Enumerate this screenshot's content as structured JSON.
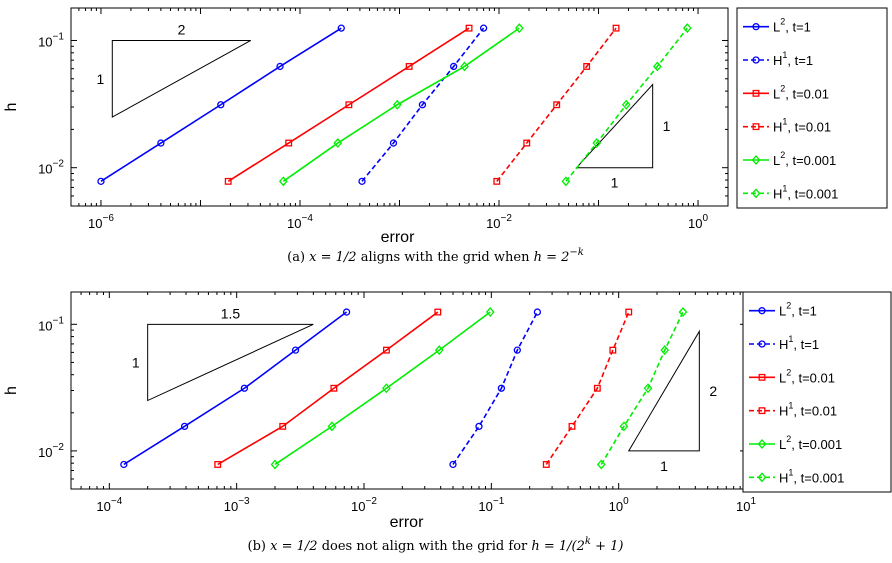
{
  "chart_data": [
    {
      "type": "line",
      "panel": "a",
      "caption_prefix": "(a)",
      "caption_math1": "x = 1/2",
      "caption_text": "aligns with the grid when",
      "caption_math2": "h = 2",
      "caption_sup": "−k",
      "xlabel": "error",
      "ylabel": "h",
      "xscale": "log",
      "yscale": "log",
      "xlim": [
        5e-07,
        2
      ],
      "ylim": [
        0.005,
        0.18
      ],
      "xticks": [
        {
          "v": 1e-06,
          "base": "10",
          "exp": "−6"
        },
        {
          "v": 0.0001,
          "base": "10",
          "exp": "−4"
        },
        {
          "v": 0.01,
          "base": "10",
          "exp": "−2"
        },
        {
          "v": 1,
          "base": "10",
          "exp": "0"
        }
      ],
      "yticks": [
        {
          "v": 0.01,
          "base": "10",
          "exp": "−2"
        },
        {
          "v": 0.1,
          "base": "10",
          "exp": "−1"
        }
      ],
      "legend_position": "right-outside",
      "series": [
        {
          "name_base": "L",
          "name_sup": "2",
          "name_rest": ", t=1",
          "color": "#0000ff",
          "dash": false,
          "marker": "circle",
          "x": [
            1e-06,
            4e-06,
            1.6e-05,
            6.3e-05,
            0.00026
          ],
          "y": [
            0.0078125,
            0.015625,
            0.03125,
            0.0625,
            0.125
          ]
        },
        {
          "name_base": "H",
          "name_sup": "1",
          "name_rest": ", t=1",
          "color": "#0000ff",
          "dash": true,
          "marker": "circle",
          "x": [
            0.00042,
            0.00087,
            0.0017,
            0.0035,
            0.007
          ],
          "y": [
            0.0078125,
            0.015625,
            0.03125,
            0.0625,
            0.125
          ]
        },
        {
          "name_base": "L",
          "name_sup": "2",
          "name_rest": ", t=0.01",
          "color": "#ff0000",
          "dash": false,
          "marker": "square",
          "x": [
            1.9e-05,
            7.7e-05,
            0.00031,
            0.00125,
            0.005
          ],
          "y": [
            0.0078125,
            0.015625,
            0.03125,
            0.0625,
            0.125
          ]
        },
        {
          "name_base": "H",
          "name_sup": "1",
          "name_rest": ", t=0.01",
          "color": "#ff0000",
          "dash": true,
          "marker": "square",
          "x": [
            0.0095,
            0.019,
            0.038,
            0.076,
            0.15
          ],
          "y": [
            0.0078125,
            0.015625,
            0.03125,
            0.0625,
            0.125
          ]
        },
        {
          "name_base": "L",
          "name_sup": "2",
          "name_rest": ", t=0.001",
          "color": "#00ee00",
          "dash": false,
          "marker": "diamond",
          "x": [
            6.8e-05,
            0.00024,
            0.00095,
            0.0045,
            0.016
          ],
          "y": [
            0.0078125,
            0.015625,
            0.03125,
            0.0625,
            0.125
          ]
        },
        {
          "name_base": "H",
          "name_sup": "1",
          "name_rest": ", t=0.001",
          "color": "#00ee00",
          "dash": true,
          "marker": "diamond",
          "x": [
            0.047,
            0.096,
            0.19,
            0.39,
            0.78
          ],
          "y": [
            0.0078125,
            0.015625,
            0.03125,
            0.0625,
            0.125
          ]
        }
      ],
      "triangles": [
        {
          "slope_label": "2",
          "side_label": "1",
          "upper_left": true,
          "x0": 1.3e-06,
          "x1": 3.2e-05,
          "y0": 0.025,
          "y1": 0.1
        },
        {
          "slope_label": "1",
          "side_label": "1",
          "upper_left": false,
          "x0": 0.06,
          "x1": 0.35,
          "y0": 0.01,
          "y1": 0.045
        }
      ]
    },
    {
      "type": "line",
      "panel": "b",
      "caption_prefix": "(b)",
      "caption_math1": "x = 1/2",
      "caption_text": "does not align with the grid for",
      "caption_math2": "h = 1/(2",
      "caption_sup": "k",
      "caption_tail": " + 1)",
      "xlabel": "error",
      "ylabel": "h",
      "xscale": "log",
      "yscale": "log",
      "xlim": [
        5e-05,
        10
      ],
      "ylim": [
        0.005,
        0.18
      ],
      "xticks": [
        {
          "v": 0.0001,
          "base": "10",
          "exp": "−4"
        },
        {
          "v": 0.001,
          "base": "10",
          "exp": "−3"
        },
        {
          "v": 0.01,
          "base": "10",
          "exp": "−2"
        },
        {
          "v": 0.1,
          "base": "10",
          "exp": "−1"
        },
        {
          "v": 1,
          "base": "10",
          "exp": "0"
        },
        {
          "v": 10,
          "base": "10",
          "exp": "1"
        }
      ],
      "yticks": [
        {
          "v": 0.01,
          "base": "10",
          "exp": "−2"
        },
        {
          "v": 0.1,
          "base": "10",
          "exp": "−1"
        }
      ],
      "legend_position": "right-outside",
      "series": [
        {
          "name_base": "L",
          "name_sup": "2",
          "name_rest": ", t=1",
          "color": "#0000ff",
          "dash": false,
          "marker": "circle",
          "x": [
            0.00013,
            0.00039,
            0.00115,
            0.0029,
            0.0073
          ],
          "y": [
            0.0078125,
            0.015625,
            0.03125,
            0.0625,
            0.125
          ]
        },
        {
          "name_base": "H",
          "name_sup": "1",
          "name_rest": ", t=1",
          "color": "#0000ff",
          "dash": true,
          "marker": "circle",
          "x": [
            0.05,
            0.08,
            0.12,
            0.16,
            0.23
          ],
          "y": [
            0.0078125,
            0.015625,
            0.03125,
            0.0625,
            0.125
          ]
        },
        {
          "name_base": "L",
          "name_sup": "2",
          "name_rest": ", t=0.01",
          "color": "#ff0000",
          "dash": false,
          "marker": "square",
          "x": [
            0.00071,
            0.0023,
            0.0058,
            0.015,
            0.038
          ],
          "y": [
            0.0078125,
            0.015625,
            0.03125,
            0.0625,
            0.125
          ]
        },
        {
          "name_base": "H",
          "name_sup": "1",
          "name_rest": ", t=0.01",
          "color": "#ff0000",
          "dash": true,
          "marker": "square",
          "x": [
            0.27,
            0.43,
            0.68,
            0.9,
            1.2
          ],
          "y": [
            0.0078125,
            0.015625,
            0.03125,
            0.0625,
            0.125
          ]
        },
        {
          "name_base": "L",
          "name_sup": "2",
          "name_rest": ", t=0.001",
          "color": "#00ee00",
          "dash": false,
          "marker": "diamond",
          "x": [
            0.002,
            0.0056,
            0.015,
            0.039,
            0.098
          ],
          "y": [
            0.0078125,
            0.015625,
            0.03125,
            0.0625,
            0.125
          ]
        },
        {
          "name_base": "H",
          "name_sup": "1",
          "name_rest": ", t=0.001",
          "color": "#00ee00",
          "dash": true,
          "marker": "diamond",
          "x": [
            0.73,
            1.1,
            1.7,
            2.3,
            3.2
          ],
          "y": [
            0.0078125,
            0.015625,
            0.03125,
            0.0625,
            0.125
          ]
        }
      ],
      "triangles": [
        {
          "slope_label": "1.5",
          "side_label": "1",
          "upper_left": true,
          "x0": 0.0002,
          "x1": 0.004,
          "y0": 0.025,
          "y1": 0.1
        },
        {
          "slope_label": "2",
          "side_label": "1",
          "upper_left": false,
          "x0": 1.2,
          "x1": 4.3,
          "y0": 0.01,
          "y1": 0.088
        }
      ]
    }
  ]
}
